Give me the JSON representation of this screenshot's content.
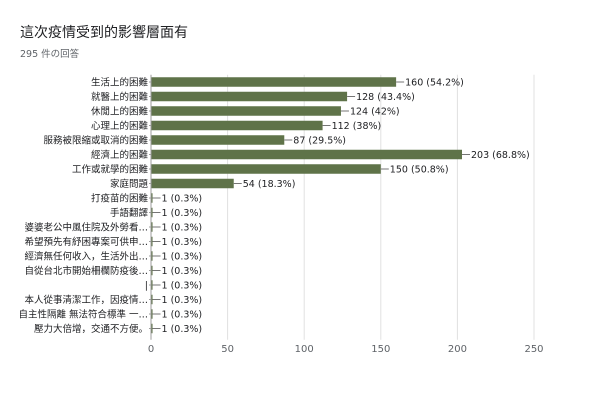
{
  "title": "這次疫情受到的影響層面有",
  "subtitle": "295 件の回答",
  "colors": {
    "bar": "#5f7349",
    "grid": "#e0e0e0",
    "axis": "#9e9e9e"
  },
  "chart_data": {
    "type": "bar",
    "orientation": "horizontal",
    "categories": [
      "生活上的困難",
      "就醫上的困難",
      "休閒上的困難",
      "心理上的困難",
      "服務被限縮或取消的困難",
      "經濟上的困難",
      "工作或就學的困難",
      "家庭問題",
      "打疫苗的困難",
      "手語翻譯",
      "婆婆老公中風住院及外勞看…",
      "希望預先有紓困專案可供申…",
      "經濟無任何收入，生活外出…",
      "自從台北市開始柵欄防疫後…",
      "|",
      "本人從事清潔工作，因疫情…",
      "自主性隔離 無法符合標準 一…",
      "壓力大倍增，交通不方便。"
    ],
    "values": [
      160,
      128,
      124,
      112,
      87,
      203,
      150,
      54,
      1,
      1,
      1,
      1,
      1,
      1,
      1,
      1,
      1,
      1
    ],
    "value_labels": [
      "160 (54.2%)",
      "128 (43.4%)",
      "124 (42%)",
      "112 (38%)",
      "87 (29.5%)",
      "203 (68.8%)",
      "150 (50.8%)",
      "54 (18.3%)",
      "1 (0.3%)",
      "1 (0.3%)",
      "1 (0.3%)",
      "1 (0.3%)",
      "1 (0.3%)",
      "1 (0.3%)",
      "1 (0.3%)",
      "1 (0.3%)",
      "1 (0.3%)",
      "1 (0.3%)"
    ],
    "xlim": [
      0,
      250
    ],
    "xticks": [
      0,
      50,
      100,
      150,
      200,
      250
    ],
    "grid": true
  }
}
